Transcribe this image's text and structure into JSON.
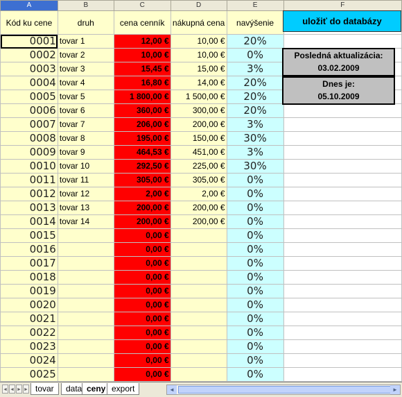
{
  "columns": [
    "A",
    "B",
    "C",
    "D",
    "E",
    "F"
  ],
  "headers": {
    "A": "Kód ku cene",
    "B": "druh",
    "C": "cena cenník",
    "D": "nákupná cena",
    "E": "navýšenie"
  },
  "rows": [
    {
      "kod": "0001",
      "druh": "tovar 1",
      "cena": "12,00 €",
      "nakup": "10,00 €",
      "navysenie": "20%"
    },
    {
      "kod": "0002",
      "druh": "tovar 2",
      "cena": "10,00 €",
      "nakup": "10,00 €",
      "navysenie": "0%"
    },
    {
      "kod": "0003",
      "druh": "tovar 3",
      "cena": "15,45 €",
      "nakup": "15,00 €",
      "navysenie": "3%"
    },
    {
      "kod": "0004",
      "druh": "tovar 4",
      "cena": "16,80 €",
      "nakup": "14,00 €",
      "navysenie": "20%"
    },
    {
      "kod": "0005",
      "druh": "tovar 5",
      "cena": "1 800,00 €",
      "nakup": "1 500,00 €",
      "navysenie": "20%"
    },
    {
      "kod": "0006",
      "druh": "tovar 6",
      "cena": "360,00 €",
      "nakup": "300,00 €",
      "navysenie": "20%"
    },
    {
      "kod": "0007",
      "druh": "tovar 7",
      "cena": "206,00 €",
      "nakup": "200,00 €",
      "navysenie": "3%"
    },
    {
      "kod": "0008",
      "druh": "tovar 8",
      "cena": "195,00 €",
      "nakup": "150,00 €",
      "navysenie": "30%"
    },
    {
      "kod": "0009",
      "druh": "tovar 9",
      "cena": "464,53 €",
      "nakup": "451,00 €",
      "navysenie": "3%"
    },
    {
      "kod": "0010",
      "druh": "tovar 10",
      "cena": "292,50 €",
      "nakup": "225,00 €",
      "navysenie": "30%"
    },
    {
      "kod": "0011",
      "druh": "tovar 11",
      "cena": "305,00 €",
      "nakup": "305,00 €",
      "navysenie": "0%"
    },
    {
      "kod": "0012",
      "druh": "tovar 12",
      "cena": "2,00 €",
      "nakup": "2,00 €",
      "navysenie": "0%"
    },
    {
      "kod": "0013",
      "druh": "tovar 13",
      "cena": "200,00 €",
      "nakup": "200,00 €",
      "navysenie": "0%"
    },
    {
      "kod": "0014",
      "druh": "tovar 14",
      "cena": "200,00 €",
      "nakup": "200,00 €",
      "navysenie": "0%"
    },
    {
      "kod": "0015",
      "druh": "",
      "cena": "0,00 €",
      "nakup": "",
      "navysenie": "0%"
    },
    {
      "kod": "0016",
      "druh": "",
      "cena": "0,00 €",
      "nakup": "",
      "navysenie": "0%"
    },
    {
      "kod": "0017",
      "druh": "",
      "cena": "0,00 €",
      "nakup": "",
      "navysenie": "0%"
    },
    {
      "kod": "0018",
      "druh": "",
      "cena": "0,00 €",
      "nakup": "",
      "navysenie": "0%"
    },
    {
      "kod": "0019",
      "druh": "",
      "cena": "0,00 €",
      "nakup": "",
      "navysenie": "0%"
    },
    {
      "kod": "0020",
      "druh": "",
      "cena": "0,00 €",
      "nakup": "",
      "navysenie": "0%"
    },
    {
      "kod": "0021",
      "druh": "",
      "cena": "0,00 €",
      "nakup": "",
      "navysenie": "0%"
    },
    {
      "kod": "0022",
      "druh": "",
      "cena": "0,00 €",
      "nakup": "",
      "navysenie": "0%"
    },
    {
      "kod": "0023",
      "druh": "",
      "cena": "0,00 €",
      "nakup": "",
      "navysenie": "0%"
    },
    {
      "kod": "0024",
      "druh": "",
      "cena": "0,00 €",
      "nakup": "",
      "navysenie": "0%"
    },
    {
      "kod": "0025",
      "druh": "",
      "cena": "0,00 €",
      "nakup": "",
      "navysenie": "0%"
    }
  ],
  "save_button": "uložiť do databázy",
  "last_update": {
    "label": "Posledná aktualizácia:",
    "value": "03.02.2009"
  },
  "today": {
    "label": "Dnes je:",
    "value": "05.10.2009"
  },
  "sheet_tabs": [
    {
      "label": "tovar",
      "active": false
    },
    {
      "label": "data",
      "active": false
    },
    {
      "label": "ceny",
      "active": true
    },
    {
      "label": "export",
      "active": false
    }
  ],
  "colors": {
    "price_bg": "#ff0000",
    "code_bg": "#ffffcc",
    "markup_bg": "#ccffff",
    "save_bg": "#00ccff",
    "info_bg": "#c0c0c0"
  }
}
